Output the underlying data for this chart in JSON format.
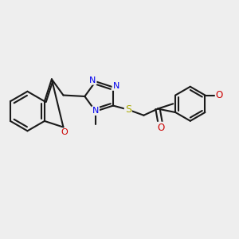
{
  "bg_color": "#eeeeee",
  "bond_color": "#1a1a1a",
  "nitrogen_color": "#0000ee",
  "oxygen_color": "#cc0000",
  "sulfur_color": "#aaaa00",
  "lw": 1.5,
  "figsize": [
    3.0,
    3.0
  ],
  "dpi": 100,
  "font_size": 7.5,
  "title": "",
  "xlim": [
    0,
    1
  ],
  "ylim": [
    0,
    1
  ]
}
